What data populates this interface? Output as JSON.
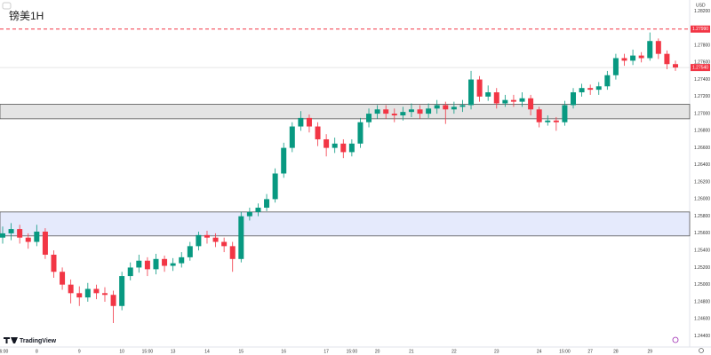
{
  "chart_data": {
    "type": "candlestick",
    "title": "镑美1H",
    "currency": "USD",
    "brand": "TradingView",
    "up_color": "#089981",
    "down_color": "#f23645",
    "grid": false,
    "ylim": [
      1.2427,
      1.2833
    ],
    "yticks": [
      {
        "value": 1.244,
        "label": "1.24400"
      },
      {
        "value": 1.246,
        "label": "1.24600"
      },
      {
        "value": 1.248,
        "label": "1.24800"
      },
      {
        "value": 1.25,
        "label": "1.25000"
      },
      {
        "value": 1.252,
        "label": "1.25200"
      },
      {
        "value": 1.254,
        "label": "1.25400"
      },
      {
        "value": 1.256,
        "label": "1.25600"
      },
      {
        "value": 1.258,
        "label": "1.25800"
      },
      {
        "value": 1.26,
        "label": "1.26000"
      },
      {
        "value": 1.262,
        "label": "1.26200"
      },
      {
        "value": 1.264,
        "label": "1.26400"
      },
      {
        "value": 1.266,
        "label": "1.26600"
      },
      {
        "value": 1.268,
        "label": "1.26800"
      },
      {
        "value": 1.27,
        "label": "1.27000"
      },
      {
        "value": 1.272,
        "label": "1.27200"
      },
      {
        "value": 1.274,
        "label": "1.27400"
      },
      {
        "value": 1.276,
        "label": "1.27600"
      },
      {
        "value": 1.278,
        "label": "1.27800"
      },
      {
        "value": 1.28,
        "label": "1.28000"
      },
      {
        "value": 1.282,
        "label": "1.28200"
      }
    ],
    "zones": [
      {
        "from": 1.2694,
        "to": 1.2711,
        "color": "#e4e4e4"
      },
      {
        "from": 1.2557,
        "to": 1.2585,
        "color": "#e5eafc"
      }
    ],
    "alert_line": {
      "value": 1.2799,
      "label": "1.27990",
      "color": "#f23645"
    },
    "last_price": {
      "value": 1.2754,
      "label": "1.27540"
    },
    "categories": [
      "06:00",
      null,
      null,
      null,
      "8",
      null,
      null,
      null,
      null,
      "9",
      null,
      null,
      null,
      null,
      "10",
      null,
      null,
      "15:00",
      null,
      null,
      "13",
      null,
      null,
      null,
      "14",
      null,
      null,
      null,
      "15",
      null,
      null,
      null,
      null,
      "16",
      null,
      null,
      null,
      null,
      "17",
      null,
      null,
      "15:00",
      null,
      null,
      "20",
      null,
      null,
      null,
      "21",
      null,
      null,
      null,
      null,
      "22",
      null,
      null,
      null,
      null,
      "23",
      null,
      null,
      null,
      null,
      "24",
      null,
      null,
      "15:00",
      null,
      null,
      "27",
      null,
      null,
      "28",
      null,
      null,
      null,
      "29",
      null,
      null,
      null
    ],
    "open": [
      1.2555,
      1.256,
      1.2565,
      1.2555,
      1.255,
      1.2562,
      1.2535,
      1.2515,
      1.25,
      1.249,
      1.2485,
      1.2495,
      1.249,
      1.2488,
      1.2475,
      1.251,
      1.252,
      1.2528,
      1.2518,
      1.253,
      1.2522,
      1.2525,
      1.2532,
      1.2545,
      1.2558,
      1.2555,
      1.255,
      1.2545,
      1.253,
      1.258,
      1.2585,
      1.259,
      1.26,
      1.263,
      1.266,
      1.2685,
      1.2695,
      1.2685,
      1.267,
      1.266,
      1.2665,
      1.2655,
      1.2665,
      1.269,
      1.27,
      1.2705,
      1.27,
      1.2698,
      1.2702,
      1.2705,
      1.27,
      1.2706,
      1.271,
      1.2705,
      1.2708,
      1.271,
      1.274,
      1.272,
      1.2725,
      1.2712,
      1.2716,
      1.2714,
      1.2718,
      1.2705,
      1.269,
      1.2692,
      1.269,
      1.271,
      1.2725,
      1.273,
      1.2728,
      1.2732,
      1.2745,
      1.2765,
      1.2762,
      1.2768,
      1.2765,
      1.2785,
      1.277,
      1.2758
    ],
    "high": [
      1.2568,
      1.2572,
      1.257,
      1.256,
      1.257,
      1.2566,
      1.254,
      1.252,
      1.2506,
      1.2498,
      1.2502,
      1.25,
      1.2497,
      1.2493,
      1.2515,
      1.2526,
      1.2535,
      1.2532,
      1.2536,
      1.2534,
      1.2531,
      1.2538,
      1.255,
      1.2562,
      1.2563,
      1.256,
      1.2555,
      1.255,
      1.2585,
      1.259,
      1.2595,
      1.2606,
      1.2636,
      1.2666,
      1.269,
      1.2703,
      1.2699,
      1.269,
      1.2676,
      1.2672,
      1.267,
      1.267,
      1.2695,
      1.2706,
      1.271,
      1.271,
      1.2706,
      1.2708,
      1.2712,
      1.271,
      1.2712,
      1.2716,
      1.2714,
      1.2714,
      1.2716,
      1.275,
      1.2744,
      1.2733,
      1.273,
      1.2722,
      1.2722,
      1.2725,
      1.2722,
      1.2708,
      1.2698,
      1.2696,
      1.2715,
      1.273,
      1.2735,
      1.2734,
      1.2737,
      1.275,
      1.277,
      1.277,
      1.2775,
      1.2772,
      1.2795,
      1.2788,
      1.2774,
      1.2762
    ],
    "low": [
      1.2548,
      1.2552,
      1.2548,
      1.2542,
      1.2545,
      1.253,
      1.2508,
      1.2494,
      1.2478,
      1.2475,
      1.248,
      1.2483,
      1.248,
      1.2455,
      1.247,
      1.2505,
      1.2514,
      1.251,
      1.2512,
      1.2515,
      1.2516,
      1.252,
      1.2528,
      1.254,
      1.2548,
      1.2544,
      1.2538,
      1.2515,
      1.2526,
      1.2575,
      1.258,
      1.2586,
      1.2596,
      1.2625,
      1.2655,
      1.268,
      1.2678,
      1.2662,
      1.265,
      1.2654,
      1.2648,
      1.265,
      1.266,
      1.2684,
      1.2694,
      1.2694,
      1.269,
      1.2692,
      1.2696,
      1.2694,
      1.2695,
      1.27,
      1.2688,
      1.27,
      1.2702,
      1.2705,
      1.2714,
      1.2715,
      1.2706,
      1.2708,
      1.2708,
      1.2708,
      1.2698,
      1.2684,
      1.2686,
      1.268,
      1.2686,
      1.2706,
      1.272,
      1.2722,
      1.2722,
      1.2728,
      1.274,
      1.2756,
      1.2757,
      1.276,
      1.2762,
      1.2764,
      1.2752,
      1.275
    ],
    "close": [
      1.256,
      1.2565,
      1.2555,
      1.255,
      1.2562,
      1.2535,
      1.2515,
      1.25,
      1.249,
      1.2485,
      1.2495,
      1.249,
      1.2488,
      1.2475,
      1.251,
      1.252,
      1.2528,
      1.2518,
      1.253,
      1.2522,
      1.2525,
      1.2532,
      1.2545,
      1.2558,
      1.2555,
      1.255,
      1.2545,
      1.253,
      1.258,
      1.2585,
      1.259,
      1.26,
      1.263,
      1.266,
      1.2685,
      1.2695,
      1.2685,
      1.267,
      1.266,
      1.2665,
      1.2655,
      1.2665,
      1.269,
      1.27,
      1.2705,
      1.27,
      1.2698,
      1.2702,
      1.2705,
      1.27,
      1.2706,
      1.271,
      1.2705,
      1.2708,
      1.271,
      1.274,
      1.272,
      1.2725,
      1.2712,
      1.2716,
      1.2714,
      1.2718,
      1.2705,
      1.269,
      1.2692,
      1.269,
      1.271,
      1.2725,
      1.273,
      1.2728,
      1.2732,
      1.2745,
      1.2765,
      1.2762,
      1.2768,
      1.2765,
      1.2785,
      1.277,
      1.2758,
      1.2754
    ]
  }
}
